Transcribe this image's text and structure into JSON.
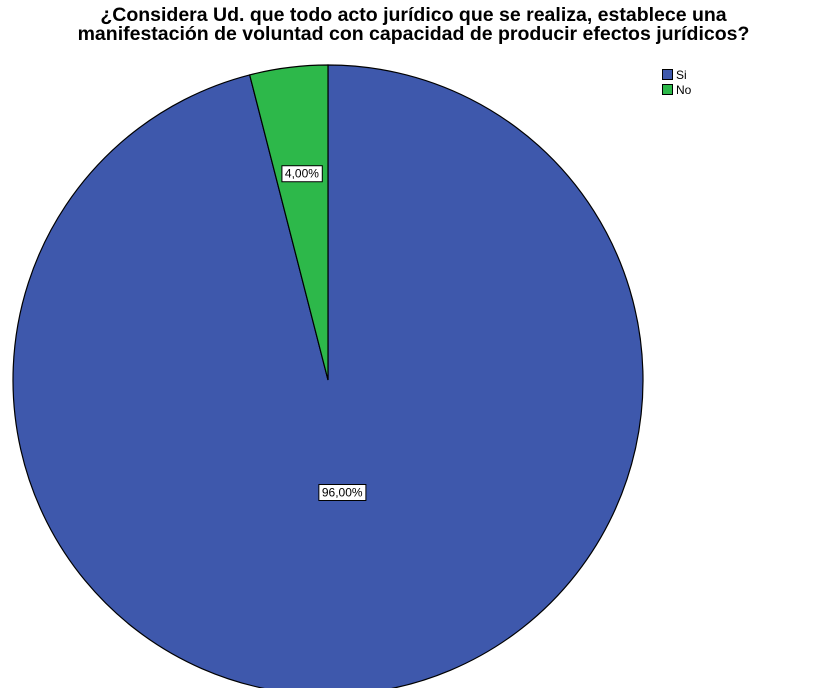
{
  "chart_data": {
    "type": "pie",
    "title": "¿Considera Ud.  que todo acto jurídico que se realiza, establece una manifestación de voluntad con capacidad de producir efectos jurídicos?",
    "title_lines": [
      "¿Considera Ud.  que todo acto jurídico que se realiza, establece una",
      "manifestación de voluntad con capacidad de producir efectos jurídicos?"
    ],
    "categories": [
      "Si",
      "No"
    ],
    "values": [
      96.0,
      4.0
    ],
    "data_labels": [
      "96,00%",
      "4,00%"
    ],
    "colors": [
      "#3e58ac",
      "#2db84a"
    ],
    "legend_position": "top-right",
    "start_angle_deg": 0,
    "direction": "counterclockwise"
  }
}
